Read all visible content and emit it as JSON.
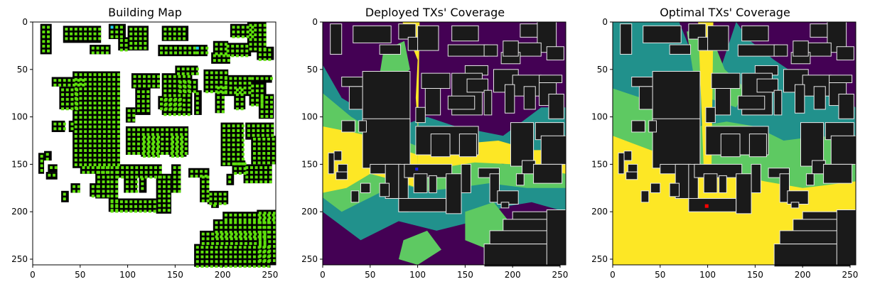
{
  "chart_data": [
    {
      "type": "heatmap",
      "title": "Building Map",
      "xlim": [
        0,
        255
      ],
      "ylim": [
        255,
        0
      ],
      "xticks": [
        0,
        50,
        100,
        150,
        200,
        250
      ],
      "yticks": [
        0,
        50,
        100,
        150,
        200,
        250
      ],
      "xtick_labels": [
        "0",
        "50",
        "100",
        "150",
        "200",
        "250"
      ],
      "ytick_labels": [
        "0",
        "50",
        "100",
        "150",
        "200",
        "250"
      ],
      "colors": {
        "background": "#ffffff",
        "building": "#000000",
        "candidate": "#5ee00c",
        "highlight": "#1fd2f0"
      }
    },
    {
      "type": "heatmap",
      "title": "Deployed TXs' Coverage",
      "xlim": [
        0,
        255
      ],
      "ylim": [
        255,
        0
      ],
      "xticks": [
        0,
        50,
        100,
        150,
        200,
        250
      ],
      "yticks": [
        0,
        50,
        100,
        150,
        200,
        250
      ],
      "xtick_labels": [
        "0",
        "50",
        "100",
        "150",
        "200",
        "250"
      ],
      "ytick_labels": [
        "0",
        "50",
        "100",
        "150",
        "200",
        "250"
      ],
      "transmitters": [
        {
          "x": 99,
          "y": 155,
          "color": "#1a1aff"
        }
      ],
      "colors": {
        "low": "#440154",
        "mid_low": "#21918c",
        "mid_high": "#5ec962",
        "high": "#fde725",
        "building": "#1a1a1a",
        "edge": "#e8e8e8"
      }
    },
    {
      "type": "heatmap",
      "title": "Optimal TXs' Coverage",
      "xlim": [
        0,
        255
      ],
      "ylim": [
        255,
        0
      ],
      "xticks": [
        0,
        50,
        100,
        150,
        200,
        250
      ],
      "yticks": [
        0,
        50,
        100,
        150,
        200,
        250
      ],
      "xtick_labels": [
        "0",
        "50",
        "100",
        "150",
        "200",
        "250"
      ],
      "ytick_labels": [
        "0",
        "50",
        "100",
        "150",
        "200",
        "250"
      ],
      "transmitters": [
        {
          "x": 99,
          "y": 194,
          "color": "#ff0000"
        }
      ],
      "colors": {
        "low": "#440154",
        "mid_low": "#21918c",
        "mid_high": "#5ec962",
        "high": "#fde725",
        "building": "#1a1a1a",
        "edge": "#e8e8e8"
      }
    }
  ]
}
